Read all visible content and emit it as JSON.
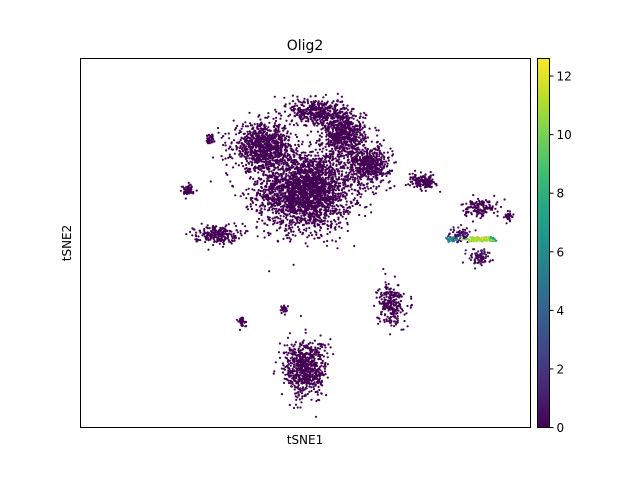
{
  "chart_data": {
    "type": "scatter",
    "title": "Olig2",
    "xlabel": "tSNE1",
    "ylabel": "tSNE2",
    "x_ticks_shown": false,
    "y_ticks_shown": false,
    "grid": false,
    "colormap": "viridis",
    "colorbar": {
      "range": [
        0,
        12.6
      ],
      "ticks": [
        "0",
        "2",
        "4",
        "6",
        "8",
        "10",
        "12"
      ],
      "tick_values": [
        0,
        2,
        4,
        6,
        8,
        10,
        12
      ]
    },
    "clusters": [
      {
        "cx": 0.0,
        "cy": 0.3,
        "rx": 0.22,
        "ry": 0.22,
        "n": 2600,
        "value": 0.0
      },
      {
        "cx": -0.2,
        "cy": 0.55,
        "rx": 0.14,
        "ry": 0.13,
        "n": 900,
        "value": 0.0
      },
      {
        "cx": 0.18,
        "cy": 0.62,
        "rx": 0.1,
        "ry": 0.14,
        "n": 700,
        "value": 0.0
      },
      {
        "cx": 0.3,
        "cy": 0.45,
        "rx": 0.1,
        "ry": 0.1,
        "n": 500,
        "value": 0.0
      },
      {
        "cx": 0.05,
        "cy": 0.75,
        "rx": 0.12,
        "ry": 0.08,
        "n": 400,
        "value": 0.0
      },
      {
        "cx": -0.42,
        "cy": 0.05,
        "rx": 0.1,
        "ry": 0.05,
        "n": 220,
        "value": 0.0
      },
      {
        "cx": -0.55,
        "cy": 0.3,
        "rx": 0.03,
        "ry": 0.03,
        "n": 60,
        "value": 0.0
      },
      {
        "cx": -0.45,
        "cy": 0.6,
        "rx": 0.02,
        "ry": 0.03,
        "n": 40,
        "value": 0.0
      },
      {
        "cx": -0.3,
        "cy": -0.45,
        "rx": 0.02,
        "ry": 0.03,
        "n": 40,
        "value": 0.0
      },
      {
        "cx": -0.1,
        "cy": -0.38,
        "rx": 0.02,
        "ry": 0.03,
        "n": 30,
        "value": 0.0
      },
      {
        "cx": 0.0,
        "cy": -0.72,
        "rx": 0.1,
        "ry": 0.16,
        "n": 700,
        "value": 0.0
      },
      {
        "cx": 0.4,
        "cy": -0.35,
        "rx": 0.06,
        "ry": 0.12,
        "n": 260,
        "value": 0.0
      },
      {
        "cx": 0.55,
        "cy": 0.35,
        "rx": 0.06,
        "ry": 0.04,
        "n": 160,
        "value": 0.0
      },
      {
        "cx": 0.82,
        "cy": 0.2,
        "rx": 0.08,
        "ry": 0.05,
        "n": 140,
        "value": 0.0
      },
      {
        "cx": 0.72,
        "cy": 0.05,
        "rx": 0.05,
        "ry": 0.04,
        "n": 80,
        "value": 0.3
      },
      {
        "cx": 0.82,
        "cy": -0.08,
        "rx": 0.05,
        "ry": 0.04,
        "n": 90,
        "value": 0.5
      },
      {
        "cx": 0.95,
        "cy": 0.15,
        "rx": 0.02,
        "ry": 0.03,
        "n": 30,
        "value": 0.0
      },
      {
        "cx": 0.82,
        "cy": 0.02,
        "rx": 0.06,
        "ry": 0.012,
        "n": 110,
        "value": 11.0
      },
      {
        "cx": 0.68,
        "cy": 0.02,
        "rx": 0.03,
        "ry": 0.012,
        "n": 30,
        "value": 6.0
      },
      {
        "cx": 0.88,
        "cy": 0.02,
        "rx": 0.02,
        "ry": 0.012,
        "n": 20,
        "value": 7.0
      }
    ]
  }
}
